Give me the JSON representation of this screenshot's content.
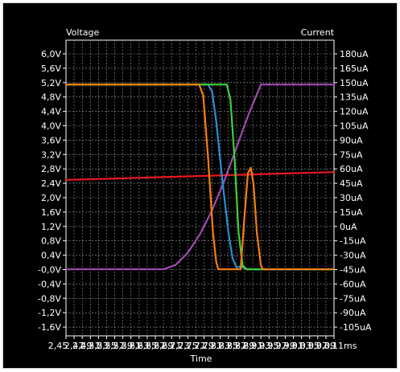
{
  "chart_data": {
    "type": "line",
    "y_left_title": "Voltage",
    "y_right_title": "Current",
    "xlabel": "Time",
    "x_ticks": [
      "2,45",
      "2,47",
      "2,49",
      "2,51",
      "2,53",
      "2,55",
      "2,57",
      "2,59",
      "2,61",
      "2,63",
      "2,65",
      "2,67",
      "2,69",
      "2,71",
      "2,73",
      "2,75",
      "2,77",
      "2,79",
      "2,81",
      "2,83",
      "2,85",
      "2,87",
      "2,89",
      "2,91",
      "2,93",
      "2,95",
      "2,97",
      "2,99",
      "3,01",
      "3,03",
      "3,05",
      "3,07",
      "3,09",
      "3,11ms"
    ],
    "xlim": [
      2.45,
      3.11
    ],
    "y_left_ticks": [
      "6,0V",
      "5,6V",
      "5,2V",
      "4,8V",
      "4,4V",
      "4,0V",
      "3,6V",
      "3,2V",
      "2,8V",
      "2,4V",
      "2,0V",
      "1,6V",
      "1,2V",
      "0,8V",
      "0,4V",
      "-0,0V",
      "-0,4V",
      "-0,8V",
      "-1,2V",
      "-1,6V"
    ],
    "y_left_lim": [
      -1.8,
      6.2
    ],
    "y_right_ticks": [
      "180uA",
      "165uA",
      "150uA",
      "135uA",
      "120uA",
      "105uA",
      "90uA",
      "75uA",
      "60uA",
      "45uA",
      "30uA",
      "15uA",
      "0uA",
      "-15uA",
      "-30uA",
      "-45uA",
      "-60uA",
      "-75uA",
      "-90uA",
      "-105uA"
    ],
    "grid": true,
    "series": [
      {
        "color": "#e8181e",
        "axis": "left",
        "x": [
          2.45,
          3.11
        ],
        "y": [
          2.42,
          2.63
        ]
      },
      {
        "color": "#a24ab2",
        "axis": "left",
        "x": [
          2.45,
          2.69,
          2.72,
          2.75,
          2.78,
          2.81,
          2.84,
          2.87,
          2.9,
          2.93,
          3.11
        ],
        "y": [
          0.0,
          0.0,
          0.12,
          0.45,
          0.95,
          1.6,
          2.4,
          3.3,
          4.2,
          5.0,
          5.0
        ]
      },
      {
        "color": "#2a8fd6",
        "axis": "left",
        "x": [
          2.45,
          2.8,
          2.81,
          2.82,
          2.835,
          2.85,
          2.86,
          2.87,
          2.88,
          2.895,
          3.11
        ],
        "y": [
          5.0,
          5.0,
          4.8,
          4.0,
          2.4,
          1.0,
          0.3,
          0.05,
          0.08,
          0.0,
          0.0
        ]
      },
      {
        "color": "#3ecf3c",
        "axis": "left",
        "x": [
          2.45,
          2.846,
          2.855,
          2.865,
          2.875,
          2.885,
          2.895,
          3.11
        ],
        "y": [
          5.0,
          5.0,
          4.6,
          3.0,
          1.0,
          0.1,
          0.0,
          0.0
        ]
      },
      {
        "color": "#f77f0f",
        "axis": "left",
        "x": [
          2.45,
          2.778,
          2.788,
          2.8,
          2.812,
          2.82,
          2.825,
          2.88,
          2.888,
          2.898,
          2.905,
          2.912,
          2.92,
          2.93,
          2.935,
          3.11
        ],
        "y": [
          5.0,
          5.0,
          4.7,
          3.0,
          1.0,
          0.2,
          0.0,
          0.0,
          1.2,
          2.6,
          2.75,
          2.3,
          1.0,
          0.1,
          0.0,
          0.0
        ]
      }
    ]
  }
}
